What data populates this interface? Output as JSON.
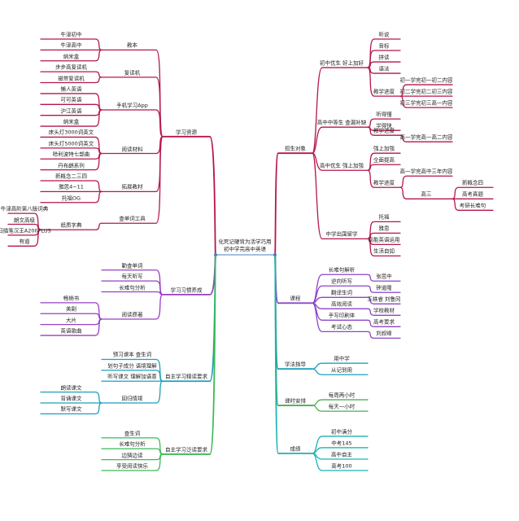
{
  "mindmap": {
    "root": {
      "line1": "化死记硬背为活学巧用",
      "line2": "初中学完高中英语",
      "color": "#4a7fc0"
    },
    "left": [
      {
        "label": "学习资源",
        "color": "#b5164f",
        "children": [
          {
            "label": "教本",
            "children": [
              {
                "label": "牛津初中"
              },
              {
                "label": "牛津高中"
              },
              {
                "label": "纳米盒"
              }
            ]
          },
          {
            "label": "复读机",
            "children": [
              {
                "label": "步步高复读机"
              },
              {
                "label": "磁带复读机"
              }
            ]
          },
          {
            "label": "手机学习App",
            "children": [
              {
                "label": "懒人英语"
              },
              {
                "label": "可可英语"
              },
              {
                "label": "沪江英语"
              },
              {
                "label": "纳米盒"
              }
            ]
          },
          {
            "label": "阅读材料",
            "children": [
              {
                "label": "床头灯3000词英文"
              },
              {
                "label": "床头灯5000词英文"
              },
              {
                "label": "哈利波特七部曲"
              },
              {
                "label": "丹布朗系列"
              }
            ]
          },
          {
            "label": "拓展教材",
            "children": [
              {
                "label": "新概念二三四"
              },
              {
                "label": "雅思4~11"
              },
              {
                "label": "托福OG"
              }
            ]
          },
          {
            "label": "查单词工具",
            "children": [
              {
                "label": "纸质字典",
                "children": [
                  {
                    "label": "牛津高阶第八版词典"
                  },
                  {
                    "label": "朗文高级"
                  },
                  {
                    "label": "扫描笔汉王A200PLUS"
                  },
                  {
                    "label": "有道"
                  }
                ]
              }
            ]
          }
        ]
      },
      {
        "label": "学习习惯养成",
        "color": "#9a3fc6",
        "children": [
          {
            "label": "勤查单词"
          },
          {
            "label": "每天听写"
          },
          {
            "label": "长难句分析"
          },
          {
            "label": "阅读原著",
            "children": [
              {
                "label": "畅销书"
              },
              {
                "label": "美剧"
              },
              {
                "label": "大片"
              },
              {
                "label": "英语歌曲"
              }
            ]
          }
        ]
      },
      {
        "label": "自主学习精读要求",
        "color": "#1ba0bd",
        "children": [
          {
            "label": "预习课本 查生词"
          },
          {
            "label": "划句子成分 语境理解"
          },
          {
            "label": "听写课文 理解加语意"
          },
          {
            "label": "回归情境",
            "children": [
              {
                "label": "朗读课文"
              },
              {
                "label": "背诵课文"
              },
              {
                "label": "默写课文"
              }
            ]
          }
        ]
      },
      {
        "label": "自主学习泛读要求",
        "color": "#3dba55",
        "children": [
          {
            "label": "查生词"
          },
          {
            "label": "长难句分析"
          },
          {
            "label": "边猜边读"
          },
          {
            "label": "享受阅读快乐"
          }
        ]
      }
    ],
    "right": [
      {
        "label": "招生对象",
        "color": "#b5164f",
        "children": [
          {
            "label": "初中优生 好上加好",
            "children": [
              {
                "label": "听说"
              },
              {
                "label": "音标"
              },
              {
                "label": "拼读"
              },
              {
                "label": "语法"
              },
              {
                "label": "教学进度",
                "children": [
                  {
                    "label": "初一学完初一初二内容"
                  },
                  {
                    "label": "初二学完初二初三内容"
                  },
                  {
                    "label": "初三学完初三高一内容"
                  }
                ]
              }
            ]
          },
          {
            "label": "高中中等生 查漏补缺",
            "children": [
              {
                "label": "听得懂"
              },
              {
                "label": "学得快"
              },
              {
                "label": "教学进度",
                "children": [
                  {
                    "label": "高一学完高一高二内容"
                  }
                ]
              }
            ]
          },
          {
            "label": "高中优生 强上加强",
            "children": [
              {
                "label": "强上加强"
              },
              {
                "label": "全面提高"
              },
              {
                "label": "教学进度",
                "children": [
                  {
                    "label": "高一学完高中三年内容"
                  },
                  {
                    "label": "高三",
                    "children": [
                      {
                        "label": "新概念四"
                      },
                      {
                        "label": "高考真题"
                      },
                      {
                        "label": "考研长难句"
                      }
                    ]
                  }
                ]
              }
            ]
          },
          {
            "label": "中学出国留学",
            "children": [
              {
                "label": "托福"
              },
              {
                "label": "雅思"
              },
              {
                "label": "高能英语运用"
              },
              {
                "label": "生活自如"
              }
            ]
          }
        ]
      },
      {
        "label": "课程",
        "color": "#8f44c9",
        "children": [
          {
            "label": "长难句解析",
            "children": [
              {
                "label": "张思中"
              }
            ]
          },
          {
            "label": "逆向听写",
            "children": [
              {
                "label": "钟道隆"
              }
            ]
          },
          {
            "label": "翻译生词",
            "children": [
              {
                "label": "王轶睿 刘鲁冈"
              }
            ]
          },
          {
            "label": "高效阅读",
            "children": [
              {
                "label": "学校教材"
              }
            ]
          },
          {
            "label": "手写印刷体",
            "children": [
              {
                "label": "高考要求"
              }
            ]
          },
          {
            "label": "考试心态",
            "children": [
              {
                "label": "刘叔峰"
              }
            ]
          }
        ]
      },
      {
        "label": "学法指导",
        "color": "#1ba0bd",
        "children": [
          {
            "label": "用中学"
          },
          {
            "label": "从记到用"
          }
        ]
      },
      {
        "label": "课时安排",
        "color": "#4caf50",
        "children": [
          {
            "label": "每周两小时"
          },
          {
            "label": "每天一小时"
          }
        ]
      },
      {
        "label": "成绩",
        "color": "#1ab2b5",
        "children": [
          {
            "label": "初中满分"
          },
          {
            "label": "中考145"
          },
          {
            "label": "高中自主"
          },
          {
            "label": "高考100"
          }
        ]
      }
    ]
  }
}
